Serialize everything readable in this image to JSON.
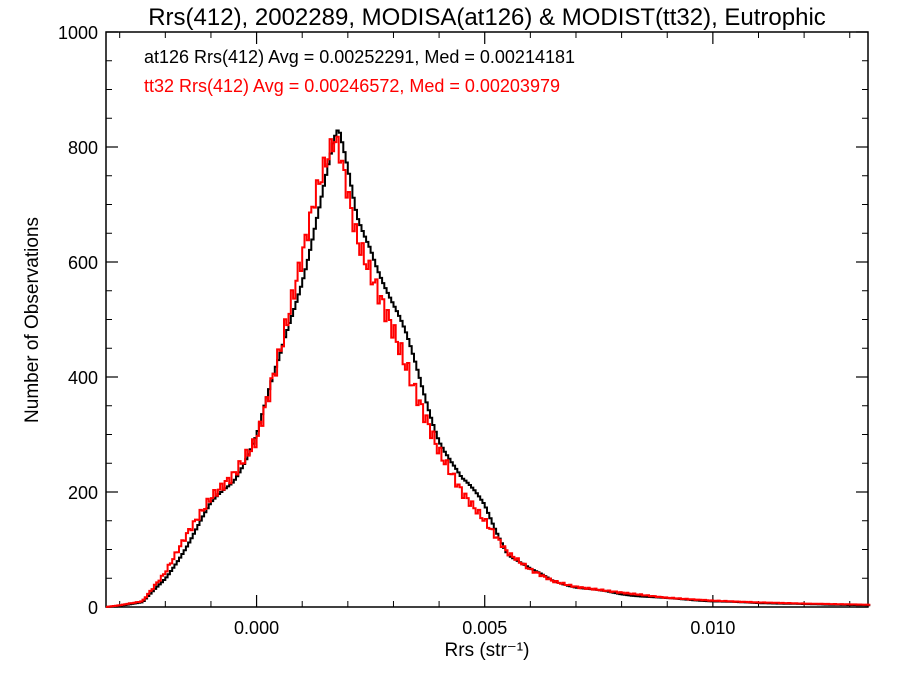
{
  "chart_data": {
    "type": "line",
    "step": true,
    "title": "Rrs(412), 2002289, MODISA(at126) & MODIST(tt32), Eutrophic",
    "xlabel": "Rrs (str⁻¹)",
    "ylabel": "Number of Observations",
    "xlim": [
      -0.0033,
      0.0134
    ],
    "ylim": [
      0,
      1000
    ],
    "xticks": [
      0.0,
      0.005,
      0.01
    ],
    "xtick_labels": [
      "0.000",
      "0.005",
      "0.010"
    ],
    "yticks": [
      0,
      200,
      400,
      600,
      800,
      1000
    ],
    "ytick_labels": [
      "0",
      "200",
      "400",
      "600",
      "800",
      "1000"
    ],
    "grid": false,
    "annotations": [
      {
        "text": "at126 Rrs(412) Avg = 0.00252291, Med = 0.00214181",
        "color": "#000000"
      },
      {
        "text": "tt32 Rrs(412) Avg = 0.00246572, Med = 0.00203979",
        "color": "#ff0000"
      }
    ],
    "series": [
      {
        "color": "#000000",
        "points": [
          [
            -0.0033,
            0
          ],
          [
            -0.003,
            2
          ],
          [
            -0.0025,
            8
          ],
          [
            -0.002,
            50
          ],
          [
            -0.0015,
            110
          ],
          [
            -0.001,
            175
          ],
          [
            -0.0005,
            225
          ],
          [
            0.0,
            300
          ],
          [
            0.0005,
            420
          ],
          [
            0.001,
            580
          ],
          [
            0.0013,
            680
          ],
          [
            0.0015,
            740
          ],
          [
            0.0017,
            800
          ],
          [
            0.0018,
            815
          ],
          [
            0.002,
            750
          ],
          [
            0.0022,
            680
          ],
          [
            0.0025,
            640
          ],
          [
            0.003,
            520
          ],
          [
            0.0035,
            410
          ],
          [
            0.004,
            300
          ],
          [
            0.0045,
            220
          ],
          [
            0.005,
            175
          ],
          [
            0.0055,
            95
          ],
          [
            0.006,
            65
          ],
          [
            0.0065,
            45
          ],
          [
            0.007,
            35
          ],
          [
            0.008,
            22
          ],
          [
            0.009,
            15
          ],
          [
            0.01,
            10
          ],
          [
            0.011,
            7
          ],
          [
            0.012,
            5
          ],
          [
            0.0134,
            3
          ]
        ]
      },
      {
        "color": "#ff0000",
        "points": [
          [
            -0.0033,
            0
          ],
          [
            -0.003,
            3
          ],
          [
            -0.0025,
            10
          ],
          [
            -0.002,
            60
          ],
          [
            -0.0015,
            130
          ],
          [
            -0.001,
            190
          ],
          [
            -0.0005,
            230
          ],
          [
            0.0,
            290
          ],
          [
            0.0005,
            440
          ],
          [
            0.001,
            610
          ],
          [
            0.0013,
            720
          ],
          [
            0.0015,
            770
          ],
          [
            0.0017,
            812
          ],
          [
            0.0018,
            800
          ],
          [
            0.002,
            720
          ],
          [
            0.0022,
            640
          ],
          [
            0.0025,
            580
          ],
          [
            0.003,
            480
          ],
          [
            0.0035,
            370
          ],
          [
            0.004,
            270
          ],
          [
            0.0045,
            200
          ],
          [
            0.005,
            150
          ],
          [
            0.0055,
            95
          ],
          [
            0.006,
            65
          ],
          [
            0.0065,
            45
          ],
          [
            0.007,
            35
          ],
          [
            0.008,
            25
          ],
          [
            0.009,
            16
          ],
          [
            0.01,
            11
          ],
          [
            0.011,
            8
          ],
          [
            0.012,
            6
          ],
          [
            0.0134,
            4
          ]
        ]
      }
    ]
  }
}
